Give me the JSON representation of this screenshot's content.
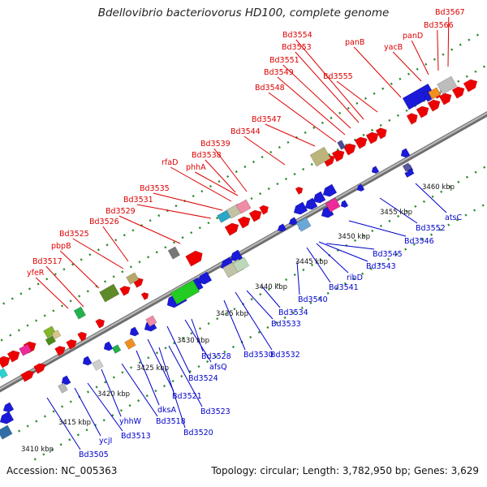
{
  "title": "Bdellovibrio bacteriovorus HD100, complete genome",
  "footer": {
    "accession": "Accession: NC_005363",
    "stats": "Topology: circular; Length: 3,782,950 bp; Genes: 3,629"
  },
  "colors": {
    "top_labels": "#dd0000",
    "bottom_labels": "#0000cc",
    "forward_genes": "#ee0000",
    "reverse_genes": "#1a1adb",
    "backbone": "#888888",
    "tick_dots": "#2e8b2e"
  },
  "ticks": [
    {
      "label": "3410 kbp"
    },
    {
      "label": "3415 kbp"
    },
    {
      "label": "3420 kbp"
    },
    {
      "label": "3425 kbp"
    },
    {
      "label": "3430 kbp"
    },
    {
      "label": "3435 kbp"
    },
    {
      "label": "3440 kbp"
    },
    {
      "label": "3445 kbp"
    },
    {
      "label": "3450 kbp"
    },
    {
      "label": "3455 kbp"
    },
    {
      "label": "3460 kbp"
    }
  ],
  "top_labels": [
    "yfeR",
    "Bd3517",
    "pbpB",
    "Bd3525",
    "Bd3526",
    "Bd3529",
    "Bd3531",
    "Bd3535",
    "rfaD",
    "phhA",
    "Bd3538",
    "Bd3539",
    "Bd3544",
    "Bd3547",
    "Bd3548",
    "Bd3549",
    "Bd3551",
    "Bd3553",
    "Bd3554",
    "Bd3555",
    "panB",
    "yacB",
    "panD",
    "Bd3566",
    "Bd3567"
  ],
  "bottom_labels": [
    "Bd3505",
    "ycjI",
    "Bd3513",
    "yhhW",
    "Bd3518",
    "dksA",
    "Bd3520",
    "Bd3521",
    "Bd3523",
    "Bd3524",
    "afsQ",
    "Bd3528",
    "Bd3530",
    "Bd3532",
    "Bd3533",
    "Bd3534",
    "Bd3540",
    "Bd3541",
    "ribD",
    "Bd3543",
    "Bd3545",
    "Bd3546",
    "Bd3552",
    "atsC"
  ]
}
